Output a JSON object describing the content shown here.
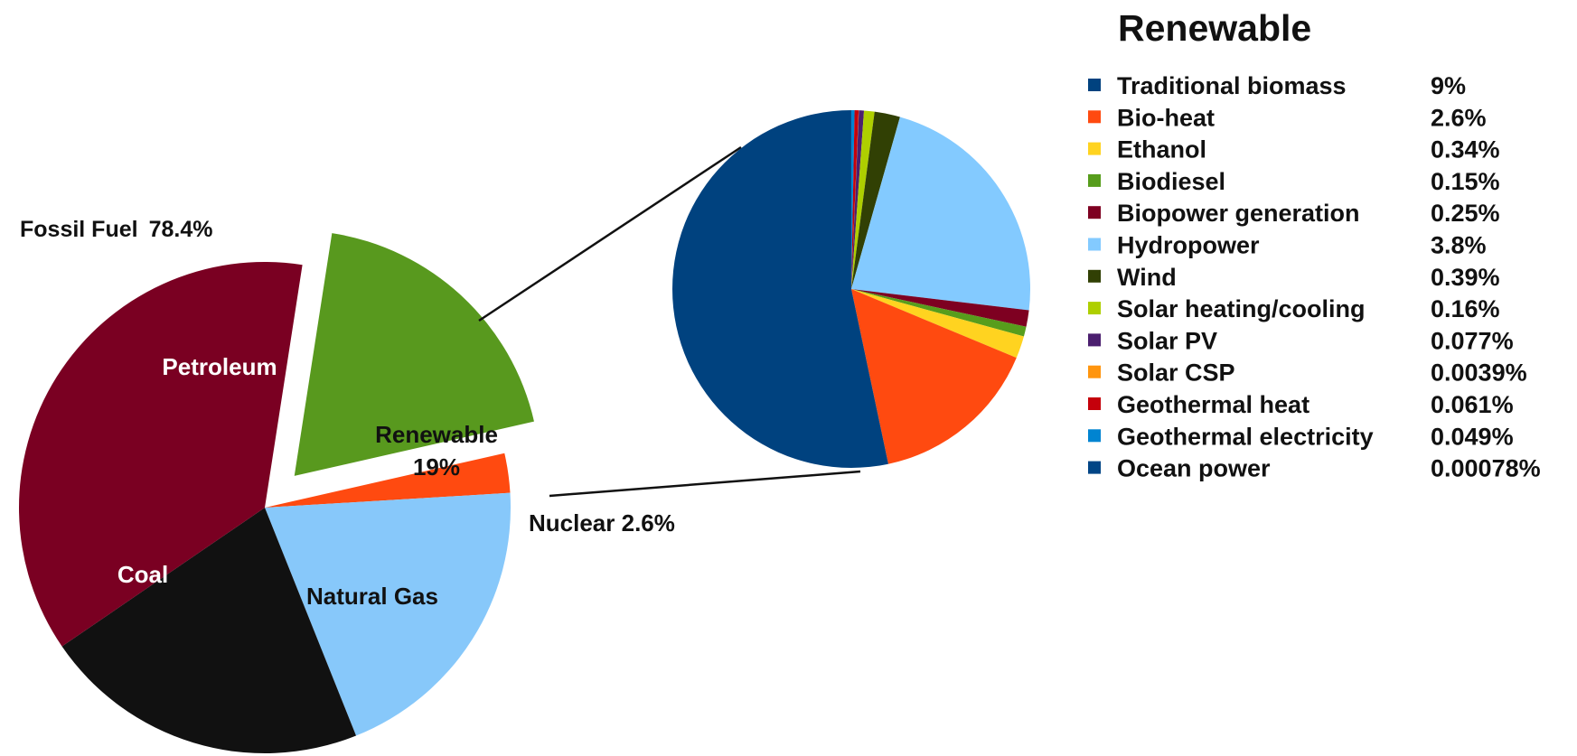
{
  "chart_data": [
    {
      "type": "pie",
      "title": "",
      "group_label": "Fossil Fuel",
      "group_value": "78.4%",
      "slices": [
        {
          "name": "Petroleum",
          "label": "Petroleum",
          "value": 37.0,
          "color": "#7a0022",
          "text_color": "#ffffff"
        },
        {
          "name": "Coal",
          "label": "Coal",
          "value": 21.5,
          "color": "#111111",
          "text_color": "#ffffff"
        },
        {
          "name": "Natural Gas",
          "label": "Natural Gas",
          "value": 19.9,
          "color": "#87c8fa",
          "text_color": "#111111"
        },
        {
          "name": "Nuclear",
          "label": "Nuclear 2.6%",
          "value": 2.6,
          "color": "#ff4a10",
          "text_color": "#111111"
        },
        {
          "name": "Renewable",
          "label": "Renewable",
          "value_label": "19%",
          "value": 19.0,
          "color": "#58991e",
          "text_color": "#111111",
          "exploded": true
        }
      ]
    },
    {
      "type": "pie",
      "title": "Renewable",
      "legend_position": "right",
      "slices": [
        {
          "name": "Traditional biomass",
          "value_label": "9%",
          "value": 9,
          "color": "#00427f"
        },
        {
          "name": "Bio-heat",
          "value_label": "2.6%",
          "value": 2.6,
          "color": "#ff4a10"
        },
        {
          "name": "Ethanol",
          "value_label": "0.34%",
          "value": 0.34,
          "color": "#ffd320"
        },
        {
          "name": "Biodiesel",
          "value_label": "0.15%",
          "value": 0.15,
          "color": "#579d1c"
        },
        {
          "name": "Biopower generation",
          "value_label": "0.25%",
          "value": 0.25,
          "color": "#7e0021"
        },
        {
          "name": "Hydropower",
          "value_label": "3.8%",
          "value": 3.8,
          "color": "#83caff"
        },
        {
          "name": "Wind",
          "value_label": "0.39%",
          "value": 0.39,
          "color": "#314004"
        },
        {
          "name": "Solar heating/cooling",
          "value_label": "0.16%",
          "value": 0.16,
          "color": "#aecf00"
        },
        {
          "name": "Solar PV",
          "value_label": "0.077%",
          "value": 0.077,
          "color": "#4b1f6f"
        },
        {
          "name": "Solar CSP",
          "value_label": "0.0039%",
          "value": 0.0039,
          "color": "#ff950e"
        },
        {
          "name": "Geothermal heat",
          "value_label": "0.061%",
          "value": 0.061,
          "color": "#c5000b"
        },
        {
          "name": "Geothermal electricity",
          "value_label": "0.049%",
          "value": 0.049,
          "color": "#0084d1"
        },
        {
          "name": "Ocean power",
          "value_label": "0.00078%",
          "value": 0.00078,
          "color": "#004586"
        }
      ]
    }
  ]
}
